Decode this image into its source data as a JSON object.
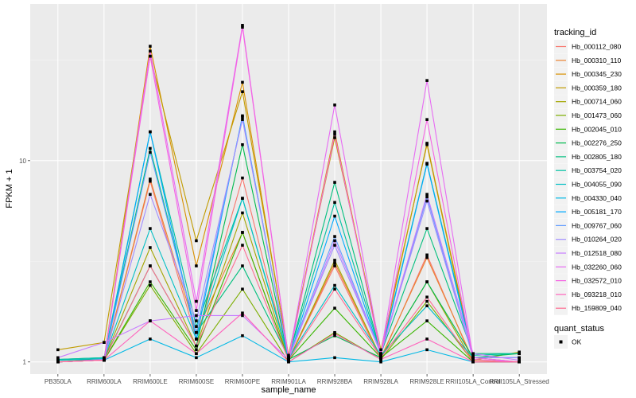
{
  "chart_data": {
    "type": "line",
    "title": "",
    "xlabel": "sample_name",
    "ylabel": "FPKM + 1",
    "yscale": "log10",
    "ylim": [
      0.87,
      60
    ],
    "yticks": [
      1,
      10
    ],
    "ytick_labels": [
      "1",
      "10"
    ],
    "grid": true,
    "legend_placement": "right",
    "categories": [
      "PB350LA",
      "RRIM600LA",
      "RRIM600LE",
      "RRIM600SE",
      "RRIM600PE",
      "RRIM901LA",
      "RRIM928BA",
      "RRIM928LA",
      "RRIM928LE",
      "RRII105LA_Control",
      "RRII105LA_Stressed"
    ],
    "legend_title": "tracking_id",
    "series": [
      {
        "name": "Hb_000112_080",
        "color": "#F8766D",
        "values": [
          1.0,
          1.02,
          7.9,
          1.3,
          8.2,
          1.02,
          3.0,
          1.03,
          3.4,
          1.0,
          1.0
        ]
      },
      {
        "name": "Hb_000310_110",
        "color": "#EA8331",
        "values": [
          1.0,
          1.02,
          8.1,
          1.4,
          4.4,
          1.02,
          3.1,
          1.05,
          3.3,
          1.02,
          1.0
        ]
      },
      {
        "name": "Hb_000345_230",
        "color": "#D89000",
        "values": [
          1.0,
          1.03,
          37.0,
          3.0,
          24.5,
          1.05,
          13.9,
          1.1,
          12.2,
          1.05,
          1.0
        ]
      },
      {
        "name": "Hb_000359_180",
        "color": "#C09B00",
        "values": [
          1.15,
          1.25,
          33.0,
          4.0,
          22.0,
          1.08,
          13.0,
          1.15,
          12.0,
          1.02,
          1.12
        ]
      },
      {
        "name": "Hb_000714_060",
        "color": "#A3A500",
        "values": [
          1.0,
          1.03,
          3.7,
          1.2,
          5.5,
          1.02,
          3.2,
          1.05,
          2.5,
          1.0,
          1.0
        ]
      },
      {
        "name": "Hb_001473_060",
        "color": "#7CAE00",
        "values": [
          1.0,
          1.02,
          2.4,
          1.1,
          2.3,
          1.0,
          1.4,
          1.03,
          2.0,
          1.0,
          1.0
        ]
      },
      {
        "name": "Hb_002045_010",
        "color": "#39B600",
        "values": [
          1.0,
          1.02,
          2.5,
          1.15,
          4.4,
          1.02,
          1.85,
          1.05,
          1.6,
          1.0,
          1.0
        ]
      },
      {
        "name": "Hb_002276_250",
        "color": "#00BB4E",
        "values": [
          1.02,
          1.03,
          3.0,
          1.2,
          12.0,
          1.03,
          1.35,
          1.05,
          2.5,
          1.05,
          1.1
        ]
      },
      {
        "name": "Hb_002805_180",
        "color": "#00BF7D",
        "values": [
          1.03,
          1.05,
          11.5,
          1.4,
          3.0,
          1.05,
          7.8,
          1.1,
          4.6,
          1.1,
          1.1
        ]
      },
      {
        "name": "Hb_003754_020",
        "color": "#00C1A3",
        "values": [
          1.03,
          1.05,
          13.9,
          1.5,
          6.5,
          1.06,
          6.2,
          1.1,
          9.7,
          1.08,
          1.1
        ]
      },
      {
        "name": "Hb_004055_090",
        "color": "#00BFC4",
        "values": [
          1.02,
          1.04,
          4.6,
          1.3,
          6.5,
          1.04,
          2.4,
          1.08,
          1.9,
          1.05,
          1.05
        ]
      },
      {
        "name": "Hb_004330_040",
        "color": "#00B8E5",
        "values": [
          1.0,
          1.02,
          1.3,
          1.05,
          1.35,
          1.0,
          1.05,
          1.0,
          1.15,
          1.0,
          1.0
        ]
      },
      {
        "name": "Hb_005181_170",
        "color": "#00A9FF",
        "values": [
          1.0,
          1.02,
          13.9,
          1.3,
          16.7,
          1.03,
          5.3,
          1.08,
          9.6,
          1.05,
          1.05
        ]
      },
      {
        "name": "Hb_009767_060",
        "color": "#619CFF",
        "values": [
          1.0,
          1.03,
          11.0,
          1.4,
          16.5,
          1.05,
          4.2,
          1.1,
          6.6,
          1.05,
          1.05
        ]
      },
      {
        "name": "Hb_010264_020",
        "color": "#9F8CFF",
        "values": [
          1.0,
          1.03,
          6.8,
          1.6,
          16.0,
          1.05,
          3.8,
          1.1,
          6.3,
          1.05,
          1.05
        ]
      },
      {
        "name": "Hb_012518_080",
        "color": "#C77CFF",
        "values": [
          1.05,
          1.25,
          1.6,
          1.7,
          1.7,
          1.03,
          4.0,
          1.1,
          6.8,
          1.1,
          1.02
        ]
      },
      {
        "name": "Hb_032260_060",
        "color": "#E76BF3",
        "values": [
          1.0,
          1.02,
          35.0,
          2.0,
          47.0,
          1.04,
          18.9,
          1.1,
          25.0,
          1.05,
          1.0
        ]
      },
      {
        "name": "Hb_032572_010",
        "color": "#F564E3",
        "values": [
          1.0,
          1.02,
          33.0,
          1.8,
          46.0,
          1.03,
          13.5,
          1.08,
          16.0,
          1.03,
          1.0
        ]
      },
      {
        "name": "Hb_093218_010",
        "color": "#FF62BC",
        "values": [
          1.0,
          1.02,
          1.6,
          1.1,
          1.75,
          1.0,
          1.38,
          1.03,
          1.3,
          1.0,
          1.0
        ]
      },
      {
        "name": "Hb_159809_040",
        "color": "#FF6C91",
        "values": [
          1.0,
          1.02,
          3.0,
          1.2,
          3.8,
          1.02,
          2.3,
          1.05,
          2.1,
          1.0,
          1.0
        ]
      }
    ],
    "shape_legend": {
      "title": "quant_status",
      "items": [
        "OK"
      ]
    }
  }
}
